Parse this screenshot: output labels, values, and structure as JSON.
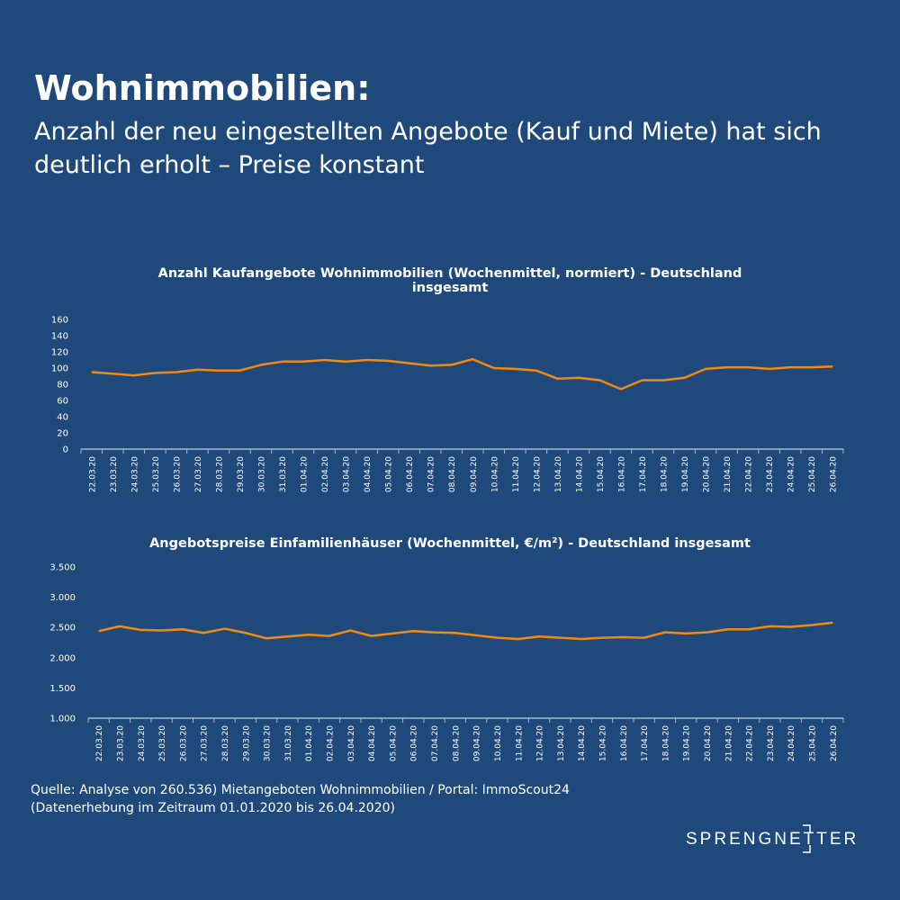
{
  "header": {
    "title": "Wohnimmobilien:",
    "subtitle": "Anzahl der neu eingestellten Angebote (Kauf und Miete) hat sich deutlich erholt – Preise konstant"
  },
  "chart_data": [
    {
      "type": "line",
      "title": "Anzahl Kaufangebote Wohnimmobilien (Wochenmittel, normiert) - Deutschland insgesamt",
      "ylim": [
        0,
        160
      ],
      "yticks": [
        "0",
        "20",
        "40",
        "60",
        "80",
        "100",
        "120",
        "140",
        "160"
      ],
      "color": "#f28a0f",
      "categories": [
        "22.03.20",
        "23.03.20",
        "24.03.20",
        "25.03.20",
        "26.03.20",
        "27.03.20",
        "28.03.20",
        "29.03.20",
        "30.03.20",
        "31.03.20",
        "01.04.20",
        "02.04.20",
        "03.04.20",
        "04.04.20",
        "05.04.20",
        "06.04.20",
        "07.04.20",
        "08.04.20",
        "09.04.20",
        "10.04.20",
        "11.04.20",
        "12.04.20",
        "13.04.20",
        "14.04.20",
        "15.04.20",
        "16.04.20",
        "17.04.20",
        "18.04.20",
        "19.04.20",
        "20.04.20",
        "21.04.20",
        "22.04.20",
        "23.04.20",
        "24.04.20",
        "25.04.20",
        "26.04.20"
      ],
      "values": [
        95,
        93,
        91,
        94,
        95,
        98,
        97,
        97,
        104,
        108,
        108,
        110,
        108,
        110,
        109,
        106,
        103,
        104,
        111,
        100,
        99,
        97,
        87,
        88,
        85,
        74,
        85,
        85,
        88,
        99,
        101,
        101,
        99,
        101,
        101,
        102
      ]
    },
    {
      "type": "line",
      "title": "Angebotspreise Einfamilienhäuser (Wochenmittel, €/m²) - Deutschland insgesamt",
      "ylim": [
        1000,
        3500
      ],
      "yticks": [
        "1.000",
        "1.500",
        "2.000",
        "2.500",
        "3.000",
        "3.500"
      ],
      "color": "#f28a0f",
      "categories": [
        "22.03.20",
        "23.03.20",
        "24.03.20",
        "25.03.20",
        "26.03.20",
        "27.03.20",
        "28.03.20",
        "29.03.20",
        "30.03.20",
        "31.03.20",
        "01.04.20",
        "02.04.20",
        "03.04.20",
        "04.04.20",
        "05.04.20",
        "06.04.20",
        "07.04.20",
        "08.04.20",
        "09.04.20",
        "10.04.20",
        "11.04.20",
        "12.04.20",
        "13.04.20",
        "14.04.20",
        "15.04.20",
        "16.04.20",
        "17.04.20",
        "18.04.20",
        "19.04.20",
        "20.04.20",
        "21.04.20",
        "22.04.20",
        "23.04.20",
        "24.04.20",
        "25.04.20",
        "26.04.20"
      ],
      "values": [
        2440,
        2520,
        2460,
        2450,
        2470,
        2410,
        2480,
        2410,
        2320,
        2350,
        2380,
        2360,
        2450,
        2360,
        2400,
        2440,
        2420,
        2410,
        2370,
        2330,
        2310,
        2350,
        2330,
        2310,
        2330,
        2340,
        2330,
        2420,
        2400,
        2420,
        2470,
        2470,
        2520,
        2510,
        2540,
        2580
      ]
    }
  ],
  "source": {
    "line1": "Quelle: Analyse von 260.536) Mietangeboten Wohnimmobilien / Portal: ImmoScout24",
    "line2": "(Datenerhebung im Zeitraum 01.01.2020 bis 26.04.2020)"
  },
  "logo": "SPRENGNETTER"
}
